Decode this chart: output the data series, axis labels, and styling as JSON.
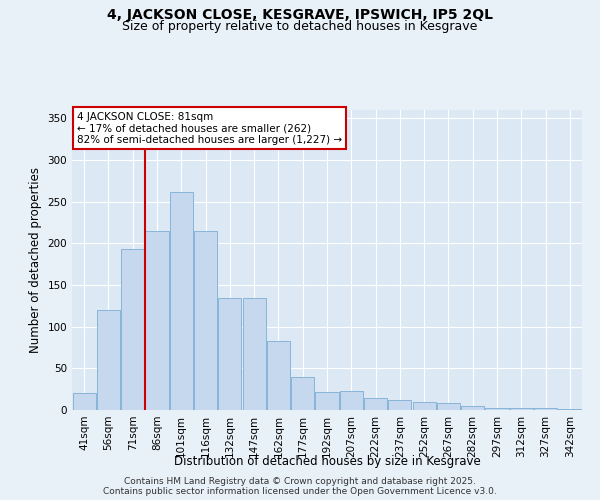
{
  "title": "4, JACKSON CLOSE, KESGRAVE, IPSWICH, IP5 2QL",
  "subtitle": "Size of property relative to detached houses in Kesgrave",
  "xlabel": "Distribution of detached houses by size in Kesgrave",
  "ylabel": "Number of detached properties",
  "categories": [
    "41sqm",
    "56sqm",
    "71sqm",
    "86sqm",
    "101sqm",
    "116sqm",
    "132sqm",
    "147sqm",
    "162sqm",
    "177sqm",
    "192sqm",
    "207sqm",
    "222sqm",
    "237sqm",
    "252sqm",
    "267sqm",
    "282sqm",
    "297sqm",
    "312sqm",
    "327sqm",
    "342sqm"
  ],
  "values": [
    20,
    120,
    193,
    215,
    262,
    215,
    135,
    135,
    83,
    40,
    22,
    23,
    14,
    12,
    10,
    9,
    5,
    3,
    2,
    2,
    1
  ],
  "bar_color": "#c5d8ee",
  "bar_edge_color": "#7aadd4",
  "vline_color": "#cc0000",
  "vline_pos": 2.49,
  "property_label": "4 JACKSON CLOSE: 81sqm",
  "annotation_line1": "← 17% of detached houses are smaller (262)",
  "annotation_line2": "82% of semi-detached houses are larger (1,227) →",
  "annotation_box_edge": "#cc0000",
  "footer_line1": "Contains HM Land Registry data © Crown copyright and database right 2025.",
  "footer_line2": "Contains public sector information licensed under the Open Government Licence v3.0.",
  "background_color": "#e8f0f8",
  "plot_bg_color": "#dce9f5",
  "ylim": [
    0,
    360
  ],
  "title_fontsize": 10,
  "subtitle_fontsize": 9,
  "axis_label_fontsize": 8.5,
  "tick_fontsize": 7.5,
  "footer_fontsize": 6.5,
  "annotation_fontsize": 7.5
}
